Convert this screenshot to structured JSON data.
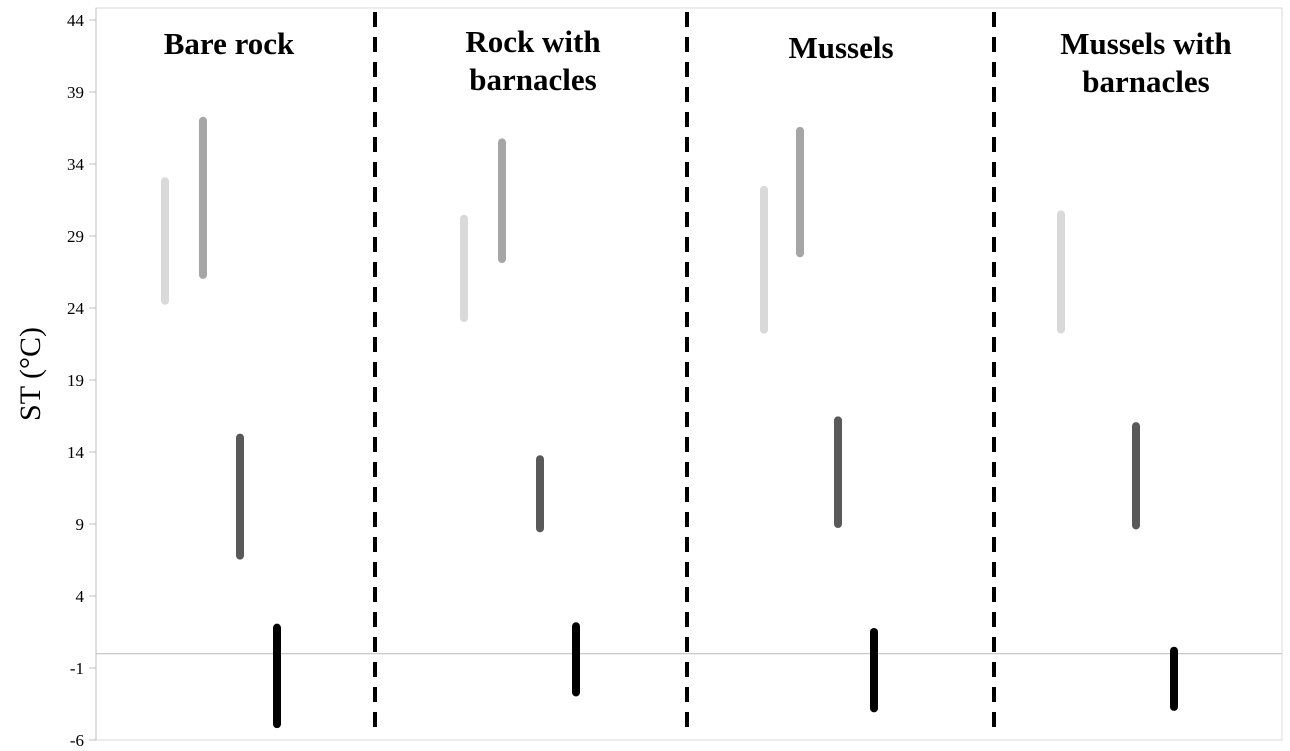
{
  "chart_data": {
    "type": "scatter",
    "ylabel": "ST (°C)",
    "ylim": [
      -6,
      44
    ],
    "yticks": [
      44,
      39,
      34,
      29,
      24,
      19,
      14,
      9,
      4,
      -1,
      -6
    ],
    "zero_line": 0,
    "grid": false,
    "legend": "none",
    "panels": [
      {
        "label_lines": [
          "Bare rock"
        ]
      },
      {
        "label_lines": [
          "Rock with",
          "barnacles"
        ]
      },
      {
        "label_lines": [
          "Mussels"
        ]
      },
      {
        "label_lines": [
          "Mussels with",
          "barnacles"
        ]
      }
    ],
    "series": [
      {
        "color": "#d9d9d9",
        "values": [
          {
            "panel": 0,
            "min": 24.5,
            "max": 32.8
          },
          {
            "panel": 1,
            "min": 23.3,
            "max": 30.2
          },
          {
            "panel": 2,
            "min": 22.5,
            "max": 32.2
          },
          {
            "panel": 3,
            "min": 22.5,
            "max": 30.5
          }
        ]
      },
      {
        "color": "#a6a6a6",
        "values": [
          {
            "panel": 0,
            "min": 26.3,
            "max": 37.0
          },
          {
            "panel": 1,
            "min": 27.4,
            "max": 35.5
          },
          {
            "panel": 2,
            "min": 27.8,
            "max": 36.3
          }
        ]
      },
      {
        "color": "#595959",
        "values": [
          {
            "panel": 0,
            "min": 6.8,
            "max": 15.0
          },
          {
            "panel": 1,
            "min": 8.7,
            "max": 13.5
          },
          {
            "panel": 2,
            "min": 9.0,
            "max": 16.2
          },
          {
            "panel": 3,
            "min": 8.9,
            "max": 15.8
          }
        ]
      },
      {
        "color": "#000000",
        "values": [
          {
            "panel": 0,
            "min": -4.9,
            "max": 1.8
          },
          {
            "panel": 1,
            "min": -2.7,
            "max": 1.9
          },
          {
            "panel": 2,
            "min": -3.8,
            "max": 1.5
          },
          {
            "panel": 3,
            "min": -3.7,
            "max": 0.2
          }
        ]
      }
    ]
  }
}
